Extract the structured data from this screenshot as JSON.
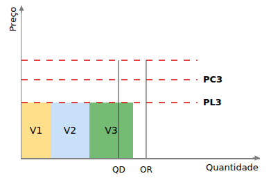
{
  "chart_data": {
    "type": "bar",
    "x_label": "Quantidade",
    "y_label": "Preço",
    "xlim": [
      0,
      100
    ],
    "ylim": [
      0,
      100
    ],
    "xticks": [],
    "yticks": [],
    "tick_labels": false,
    "grid": false,
    "series": [
      {
        "name": "V1",
        "color": "#ffe08a",
        "x0": 0,
        "x1": 12.2,
        "value": 36.4
      },
      {
        "name": "V2",
        "color": "#c9e1f8",
        "x0": 12.2,
        "x1": 28.5,
        "value": 36.4
      },
      {
        "name": "V3",
        "color": "#74bb74",
        "x0": 28.5,
        "x1": 46.8,
        "value": 36.4
      }
    ],
    "price_lines": [
      {
        "value": 64.1,
        "x0": 0,
        "x1": 73.8,
        "color": "#e00000",
        "line_style": "dash"
      },
      {
        "label": "PC3",
        "value": 51.4,
        "x0": 0,
        "x1": 73.8,
        "color": "#e00000",
        "line_style": "dash"
      },
      {
        "label": "PL3",
        "value": 36.4,
        "x0": 0,
        "x1": 73.8,
        "color": "#e00000",
        "line_style": "dash"
      }
    ],
    "quantity_lines": [
      {
        "label": "QD",
        "x": 40.7,
        "top": 64.1
      },
      {
        "label": "OR",
        "x": 52.3,
        "top": 64.1
      }
    ]
  }
}
